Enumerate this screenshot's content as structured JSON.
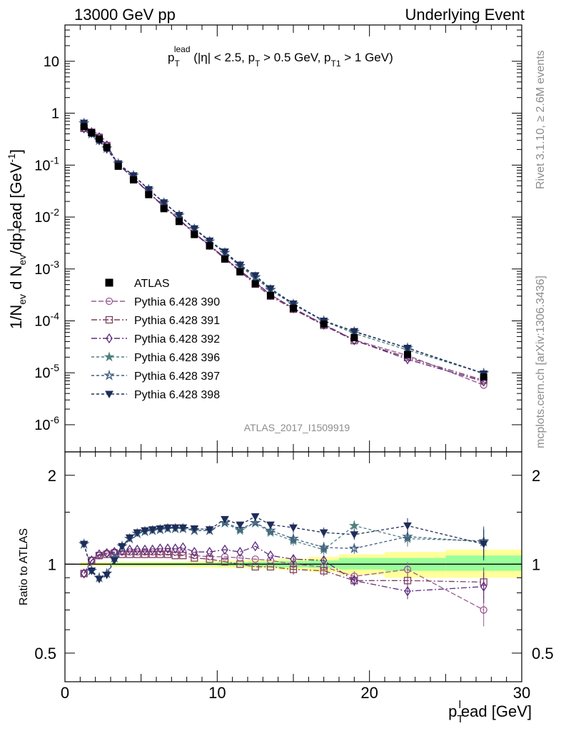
{
  "header": {
    "left": "13000 GeV pp",
    "right": "Underlying Event"
  },
  "side_text": {
    "rivet": "Rivet 3.1.10, ≥ 2.6M events",
    "mcplots": "mcplots.cern.ch [arXiv:1306.3436]"
  },
  "analysis_id": "ATLAS_2017_I1509919",
  "chart_data": [
    {
      "type": "line",
      "title": "p_T^lead (|η| < 2.5, p_T > 0.5 GeV, p_T1 > 1 GeV)",
      "title_parts": {
        "p": "p",
        "sub": "T",
        "sup": "lead",
        "rest": " (|η| < 2.5, p",
        "sub2": "T",
        "rest2": " > 0.5 GeV, p",
        "sub3": "T1",
        "rest3": " > 1 GeV)"
      },
      "ylabel_parts": {
        "a": "1/N",
        "s1": "ev",
        "b": " d N",
        "s2": "ev",
        "c": "/dp",
        "sub3": "T",
        "sup3": "l",
        "d": "ead [GeV",
        "sup4": "-1",
        "e": "]"
      },
      "xlim": [
        0,
        30
      ],
      "ylim": [
        3e-07,
        50
      ],
      "yscale": "log",
      "yticks": [
        {
          "v": 1e-06,
          "m": "10",
          "e": "-6"
        },
        {
          "v": 1e-05,
          "m": "10",
          "e": "-5"
        },
        {
          "v": 0.0001,
          "m": "10",
          "e": "-4"
        },
        {
          "v": 0.001,
          "m": "10",
          "e": "-3"
        },
        {
          "v": 0.01,
          "m": "10",
          "e": "-2"
        },
        {
          "v": 0.1,
          "m": "10",
          "e": "-1"
        },
        {
          "v": 1,
          "m": "1",
          "e": ""
        },
        {
          "v": 10,
          "m": "10",
          "e": ""
        }
      ],
      "legend_position": "lower-left",
      "series": [
        {
          "name": "ATLAS",
          "x": [
            1.25,
            1.75,
            2.25,
            2.75,
            3.5,
            4.5,
            5.5,
            6.5,
            7.5,
            8.5,
            9.5,
            10.5,
            11.5,
            12.5,
            13.5,
            15,
            17,
            19,
            22.5,
            27.5
          ],
          "y": [
            0.55,
            0.42,
            0.32,
            0.22,
            0.095,
            0.052,
            0.027,
            0.0145,
            0.0082,
            0.0046,
            0.0028,
            0.00155,
            0.00088,
            0.00052,
            0.00031,
            0.000175,
            8.65e-05,
            4.75e-05,
            2.25e-05,
            8.3e-06
          ]
        },
        {
          "name": "Pythia 6.428 390",
          "x": [
            1.25,
            1.75,
            2.25,
            2.75,
            3.5,
            4.5,
            5.5,
            6.5,
            7.5,
            8.5,
            9.5,
            10.5,
            11.5,
            12.5,
            13.5,
            15,
            17,
            19,
            22.5,
            27.5
          ],
          "y": [
            0.51,
            0.43,
            0.345,
            0.24,
            0.104,
            0.057,
            0.0296,
            0.0159,
            0.009,
            0.0049,
            0.00285,
            0.00162,
            0.00092,
            0.00054,
            0.00032,
            0.000175,
            8.6e-05,
            4.3e-05,
            2.16e-05,
            5.8e-06
          ]
        },
        {
          "name": "Pythia 6.428 391",
          "x": [
            1.25,
            1.75,
            2.25,
            2.75,
            3.5,
            4.5,
            5.5,
            6.5,
            7.5,
            8.5,
            9.5,
            10.5,
            11.5,
            12.5,
            13.5,
            15,
            17,
            19,
            22.5,
            27.5
          ],
          "y": [
            0.51,
            0.43,
            0.343,
            0.238,
            0.103,
            0.056,
            0.0292,
            0.0157,
            0.0088,
            0.0048,
            0.00278,
            0.00157,
            0.00089,
            0.00051,
            0.0003,
            0.000168,
            8.2e-05,
            4.18e-05,
            1.97e-05,
            7.2e-06
          ]
        },
        {
          "name": "Pythia 6.428 392",
          "x": [
            1.25,
            1.75,
            2.25,
            2.75,
            3.5,
            4.5,
            5.5,
            6.5,
            7.5,
            8.5,
            9.5,
            10.5,
            11.5,
            12.5,
            13.5,
            15,
            17,
            19,
            22.5,
            27.5
          ],
          "y": [
            0.51,
            0.43,
            0.345,
            0.24,
            0.104,
            0.057,
            0.0297,
            0.016,
            0.0091,
            0.0049,
            0.00288,
            0.00164,
            0.00093,
            0.00056,
            0.00032,
            0.000175,
            8.4e-05,
            4.25e-05,
            1.82e-05,
            6.8e-06
          ]
        },
        {
          "name": "Pythia 6.428 396",
          "x": [
            1.25,
            1.75,
            2.25,
            2.75,
            3.5,
            4.5,
            5.5,
            6.5,
            7.5,
            8.5,
            9.5,
            10.5,
            11.5,
            12.5,
            13.5,
            15,
            17,
            19,
            22.5,
            27.5
          ],
          "y": [
            0.64,
            0.4,
            0.3,
            0.21,
            0.107,
            0.063,
            0.034,
            0.0188,
            0.0108,
            0.0059,
            0.0034,
            0.00205,
            0.00112,
            0.00068,
            0.00039,
            0.000205,
            9.9e-05,
            5.75e-05,
            2.75e-05,
            9.8e-06
          ]
        },
        {
          "name": "Pythia 6.428 397",
          "x": [
            1.25,
            1.75,
            2.25,
            2.75,
            3.5,
            4.5,
            5.5,
            6.5,
            7.5,
            8.5,
            9.5,
            10.5,
            11.5,
            12.5,
            13.5,
            15,
            17,
            19,
            22.5,
            27.5
          ],
          "y": [
            0.64,
            0.4,
            0.3,
            0.21,
            0.107,
            0.063,
            0.034,
            0.0188,
            0.0108,
            0.0059,
            0.0034,
            0.00205,
            0.00115,
            0.0007,
            0.0004,
            0.00021,
            0.0001,
            6.2e-05,
            3e-05,
            9.8e-06
          ]
        },
        {
          "name": "Pythia 6.428 398",
          "x": [
            1.25,
            1.75,
            2.25,
            2.75,
            3.5,
            4.5,
            5.5,
            6.5,
            7.5,
            8.5,
            9.5,
            10.5,
            11.5,
            12.5,
            13.5,
            15,
            17,
            19,
            22.5,
            27.5
          ],
          "y": [
            0.65,
            0.4,
            0.29,
            0.2,
            0.107,
            0.063,
            0.0342,
            0.019,
            0.0109,
            0.006,
            0.0035,
            0.00215,
            0.0012,
            0.00075,
            0.00042,
            0.000215,
            0.0001,
            6.3e-05,
            3e-05,
            9.6e-06
          ]
        }
      ]
    },
    {
      "type": "line",
      "ylabel": "Ratio to ATLAS",
      "xlabel_parts": {
        "p": "p",
        "sub": "T",
        "sup": "l",
        "rest": "ead [GeV]"
      },
      "xlim": [
        0,
        30
      ],
      "ylim": [
        0.4,
        2.4
      ],
      "yscale": "log",
      "yticks": [
        0.5,
        1,
        2
      ],
      "xticks": [
        0,
        10,
        20,
        30
      ],
      "bands": [
        {
          "x0": [
            1,
            2,
            3,
            5,
            8,
            10,
            12,
            14,
            16,
            18,
            21,
            25
          ],
          "x1": [
            2,
            3,
            5,
            8,
            10,
            12,
            14,
            16,
            18,
            21,
            25,
            30
          ],
          "yellow": [
            [
              0.985,
              1.015
            ],
            [
              0.985,
              1.015
            ],
            [
              0.98,
              1.02
            ],
            [
              0.98,
              1.02
            ],
            [
              0.975,
              1.025
            ],
            [
              0.97,
              1.03
            ],
            [
              0.965,
              1.035
            ],
            [
              0.955,
              1.045
            ],
            [
              0.94,
              1.06
            ],
            [
              0.92,
              1.08
            ],
            [
              0.9,
              1.1
            ],
            [
              0.9,
              1.12
            ]
          ],
          "green": [
            [
              0.995,
              1.005
            ],
            [
              0.995,
              1.005
            ],
            [
              0.99,
              1.01
            ],
            [
              0.99,
              1.01
            ],
            [
              0.99,
              1.01
            ],
            [
              0.985,
              1.015
            ],
            [
              0.98,
              1.02
            ],
            [
              0.975,
              1.025
            ],
            [
              0.97,
              1.03
            ],
            [
              0.96,
              1.05
            ],
            [
              0.95,
              1.05
            ],
            [
              0.95,
              1.07
            ]
          ]
        }
      ],
      "series": [
        {
          "name": "Pythia 6.428 390",
          "x": [
            1.25,
            1.75,
            2.25,
            2.75,
            3.25,
            3.75,
            4.25,
            4.75,
            5.25,
            5.75,
            6.25,
            6.75,
            7.25,
            7.75,
            8.5,
            9.5,
            10.5,
            11.5,
            12.5,
            13.5,
            15,
            17,
            19,
            22.5,
            27.5
          ],
          "y": [
            0.93,
            1.03,
            1.07,
            1.09,
            1.1,
            1.1,
            1.1,
            1.1,
            1.1,
            1.1,
            1.1,
            1.1,
            1.1,
            1.1,
            1.07,
            1.06,
            1.06,
            1.05,
            1.04,
            1.03,
            1.0,
            0.98,
            0.91,
            0.96,
            0.7
          ]
        },
        {
          "name": "Pythia 6.428 391",
          "x": [
            1.25,
            1.75,
            2.25,
            2.75,
            3.25,
            3.75,
            4.25,
            4.75,
            5.25,
            5.75,
            6.25,
            6.75,
            7.25,
            7.75,
            8.5,
            9.5,
            10.5,
            11.5,
            12.5,
            13.5,
            15,
            17,
            19,
            22.5,
            27.5
          ],
          "y": [
            0.93,
            1.03,
            1.07,
            1.08,
            1.09,
            1.08,
            1.08,
            1.08,
            1.08,
            1.08,
            1.08,
            1.08,
            1.07,
            1.07,
            1.05,
            1.04,
            1.02,
            1.0,
            0.98,
            0.98,
            0.96,
            0.95,
            0.88,
            0.88,
            0.87
          ]
        },
        {
          "name": "Pythia 6.428 392",
          "x": [
            1.25,
            1.75,
            2.25,
            2.75,
            3.25,
            3.75,
            4.25,
            4.75,
            5.25,
            5.75,
            6.25,
            6.75,
            7.25,
            7.75,
            8.5,
            9.5,
            10.5,
            11.5,
            12.5,
            13.5,
            15,
            17,
            19,
            22.5,
            27.5
          ],
          "y": [
            0.93,
            1.03,
            1.08,
            1.09,
            1.1,
            1.11,
            1.12,
            1.12,
            1.12,
            1.12,
            1.13,
            1.13,
            1.13,
            1.14,
            1.1,
            1.1,
            1.12,
            1.1,
            1.15,
            1.07,
            1.04,
            1.03,
            0.88,
            0.81,
            0.84
          ]
        },
        {
          "name": "Pythia 6.428 396",
          "x": [
            1.25,
            1.75,
            2.25,
            2.75,
            3.25,
            3.75,
            4.25,
            4.75,
            5.25,
            5.75,
            6.25,
            6.75,
            7.25,
            7.75,
            8.5,
            9.5,
            10.5,
            11.5,
            12.5,
            13.5,
            15,
            17,
            19,
            22.5,
            27.5
          ],
          "y": [
            1.17,
            0.95,
            0.9,
            0.93,
            1.05,
            1.15,
            1.22,
            1.27,
            1.29,
            1.3,
            1.31,
            1.32,
            1.32,
            1.32,
            1.3,
            1.3,
            1.38,
            1.3,
            1.38,
            1.28,
            1.2,
            1.12,
            1.35,
            1.22,
            1.2
          ]
        },
        {
          "name": "Pythia 6.428 397",
          "x": [
            1.25,
            1.75,
            2.25,
            2.75,
            3.25,
            3.75,
            4.25,
            4.75,
            5.25,
            5.75,
            6.25,
            6.75,
            7.25,
            7.75,
            8.5,
            9.5,
            10.5,
            11.5,
            12.5,
            13.5,
            15,
            17,
            19,
            22.5,
            27.5
          ],
          "y": [
            1.17,
            0.95,
            0.9,
            0.93,
            1.05,
            1.15,
            1.22,
            1.27,
            1.29,
            1.3,
            1.31,
            1.32,
            1.32,
            1.32,
            1.3,
            1.3,
            1.38,
            1.32,
            1.38,
            1.3,
            1.22,
            1.14,
            1.13,
            1.24,
            1.19
          ]
        },
        {
          "name": "Pythia 6.428 398",
          "x": [
            1.25,
            1.75,
            2.25,
            2.75,
            3.25,
            3.75,
            4.25,
            4.75,
            5.25,
            5.75,
            6.25,
            6.75,
            7.25,
            7.75,
            8.5,
            9.5,
            10.5,
            11.5,
            12.5,
            13.5,
            15,
            17,
            19,
            22.5,
            27.5
          ],
          "y": [
            1.17,
            0.95,
            0.89,
            0.92,
            1.03,
            1.15,
            1.23,
            1.28,
            1.3,
            1.31,
            1.32,
            1.33,
            1.33,
            1.33,
            1.32,
            1.31,
            1.42,
            1.36,
            1.45,
            1.36,
            1.33,
            1.28,
            1.26,
            1.35,
            1.17
          ]
        }
      ]
    }
  ],
  "style": {
    "colors": {
      "s390": "#9b5b93",
      "s391": "#7e3f5f",
      "s392": "#5c2c7f",
      "s396": "#4f7f7f",
      "s397": "#3f5f7f",
      "s398": "#1f2d5a",
      "band_yellow": "#ffff99",
      "band_green": "#99ff99",
      "ref_line": "#000000"
    },
    "markers": {
      "ATLAS": "square-filled",
      "s390": "circle-open",
      "s391": "square-open",
      "s392": "diamond-open",
      "s396": "star-filled",
      "s397": "star-open",
      "s398": "triangle-down-filled"
    }
  }
}
